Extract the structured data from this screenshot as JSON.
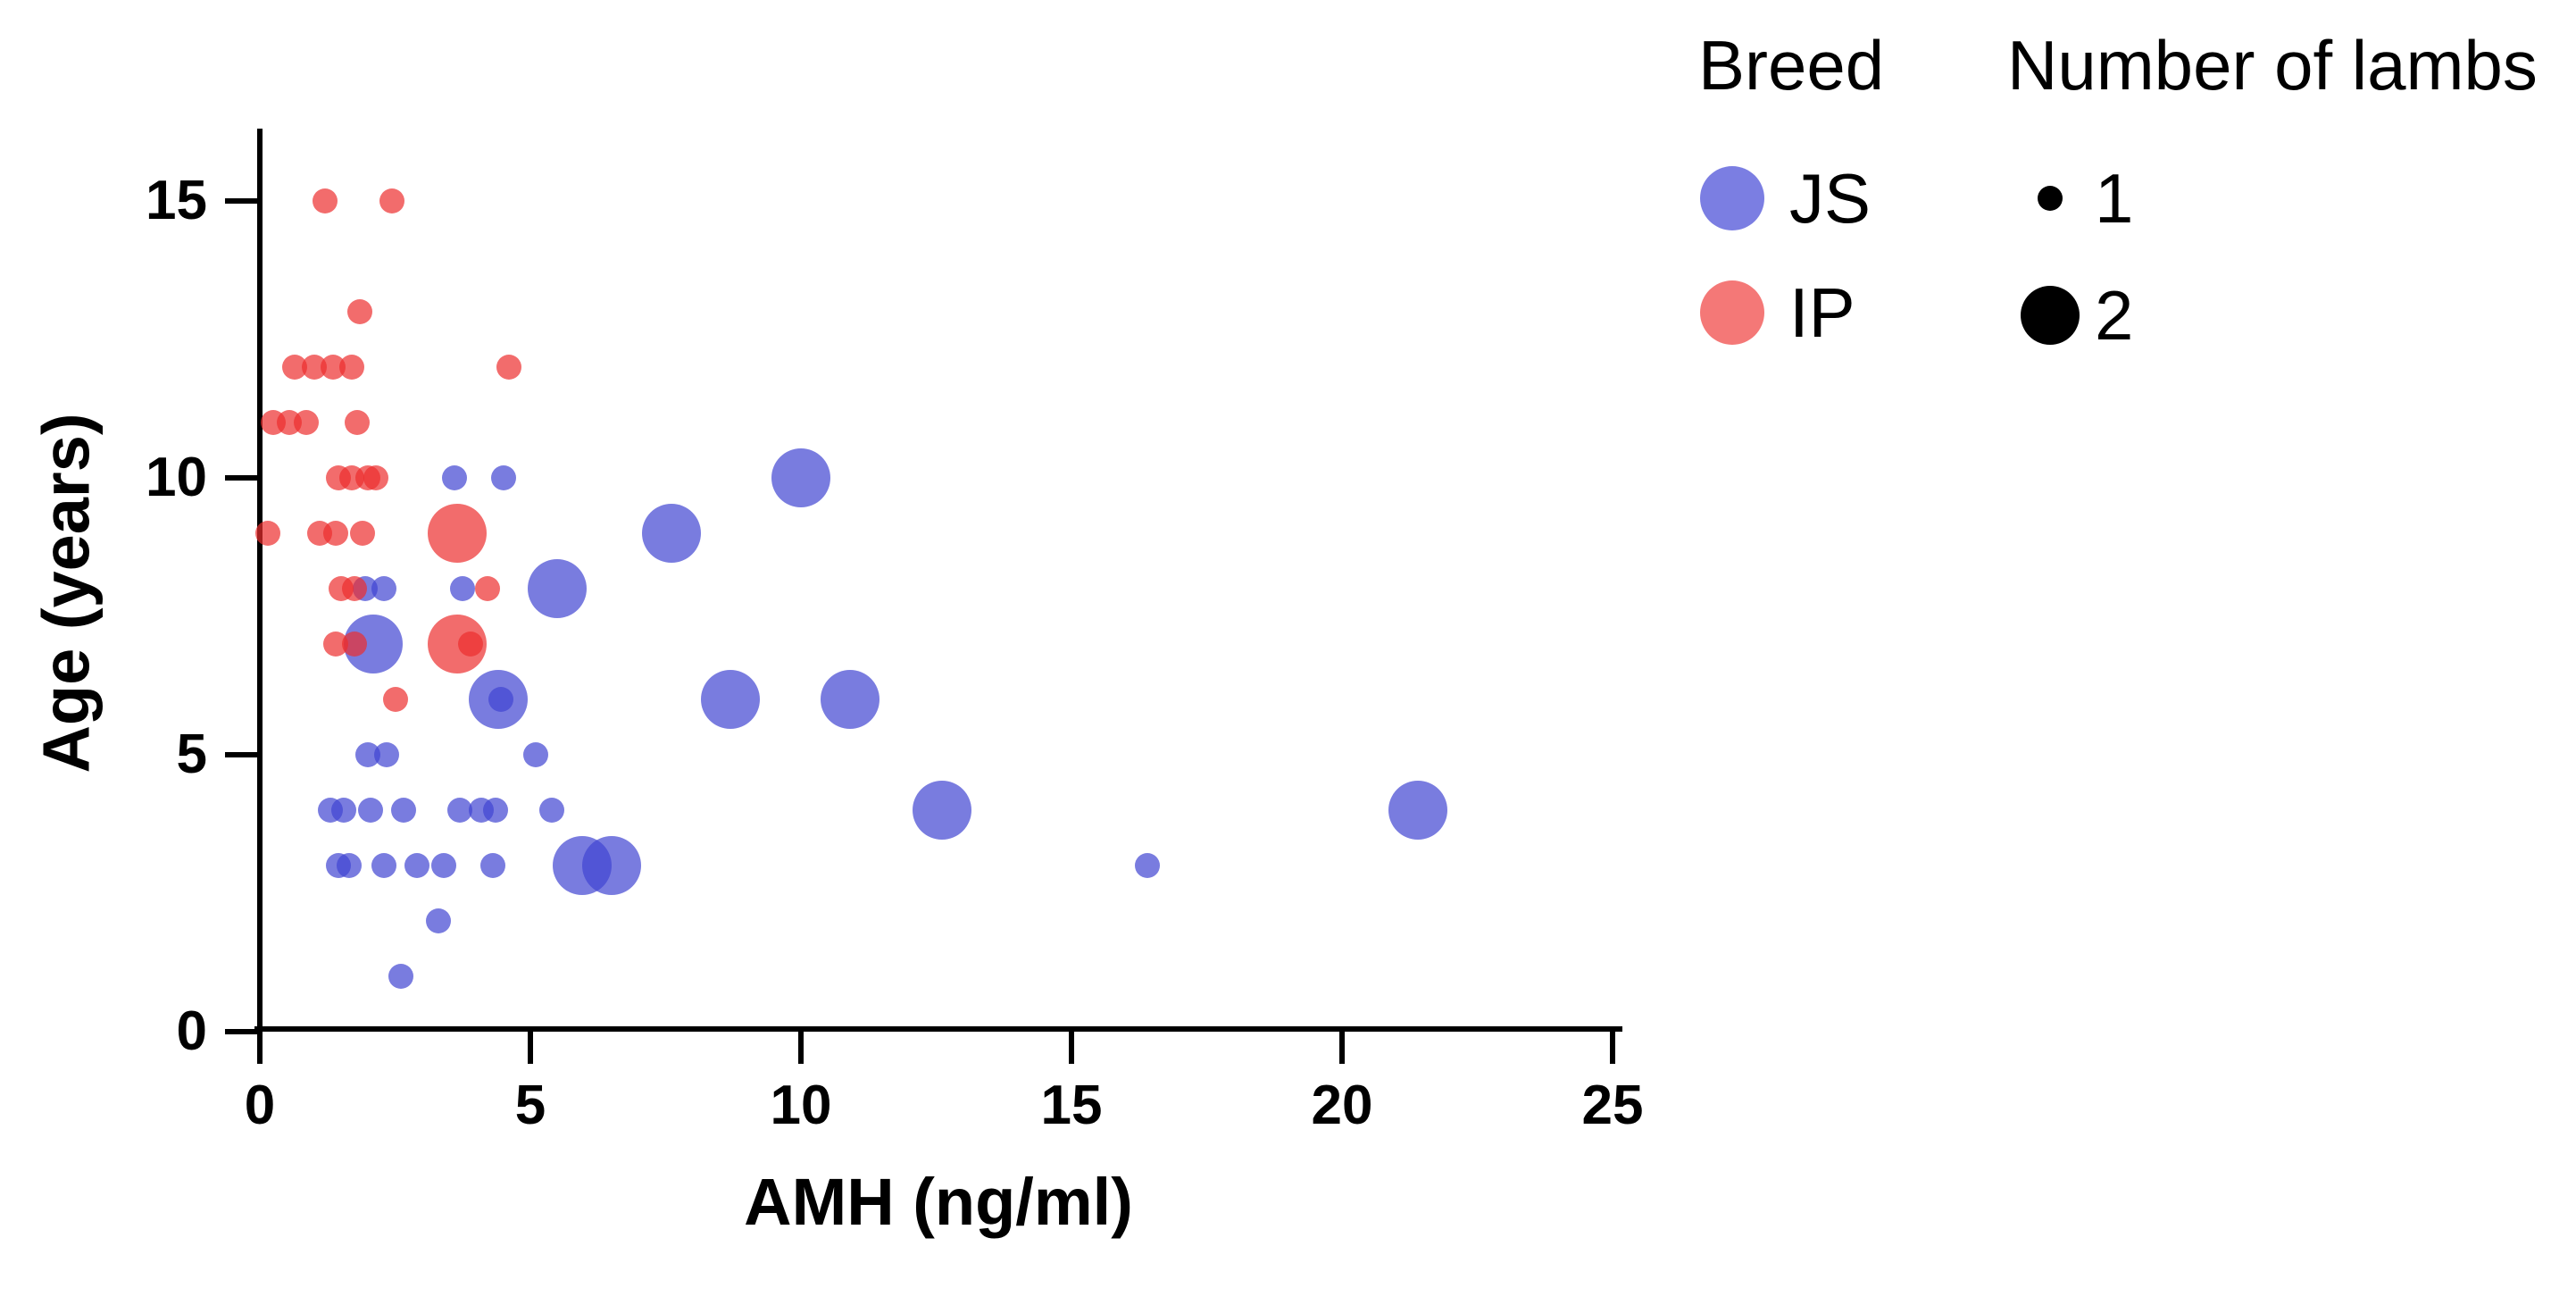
{
  "legend": {
    "breed": {
      "title": "Breed",
      "items": [
        {
          "label": "JS",
          "color": "#7b7ee2"
        },
        {
          "label": "IP",
          "color": "#f47877"
        }
      ]
    },
    "lambs": {
      "title": "Number of lambs",
      "items": [
        {
          "label": "1",
          "size": 1
        },
        {
          "label": "2",
          "size": 2
        }
      ]
    }
  },
  "chart_data": {
    "type": "scatter",
    "title": "",
    "xlabel": "AMH (ng/ml)",
    "ylabel": "Age (years)",
    "xlim": [
      0,
      25
    ],
    "ylim": [
      0,
      16.3
    ],
    "xticks": [
      0,
      5,
      10,
      15,
      20,
      25
    ],
    "yticks": [
      0,
      5,
      10,
      15
    ],
    "grid": false,
    "legend_position": "top-right",
    "bubble_radius_px": {
      "1": 14,
      "2": 33
    },
    "series": [
      {
        "name": "JS",
        "color_rgba": "rgba(64,68,209,0.70)",
        "points": [
          {
            "x": 3.6,
            "y": 10,
            "lambs": 1
          },
          {
            "x": 4.5,
            "y": 10,
            "lambs": 1
          },
          {
            "x": 10.0,
            "y": 10,
            "lambs": 2
          },
          {
            "x": 7.6,
            "y": 9,
            "lambs": 2
          },
          {
            "x": 1.95,
            "y": 8,
            "lambs": 1
          },
          {
            "x": 2.3,
            "y": 8,
            "lambs": 1
          },
          {
            "x": 3.75,
            "y": 8,
            "lambs": 1
          },
          {
            "x": 5.5,
            "y": 8,
            "lambs": 2
          },
          {
            "x": 2.1,
            "y": 7,
            "lambs": 2
          },
          {
            "x": 4.4,
            "y": 6,
            "lambs": 2
          },
          {
            "x": 4.45,
            "y": 6,
            "lambs": 1
          },
          {
            "x": 8.7,
            "y": 6,
            "lambs": 2
          },
          {
            "x": 10.9,
            "y": 6,
            "lambs": 2
          },
          {
            "x": 2.0,
            "y": 5,
            "lambs": 1
          },
          {
            "x": 2.35,
            "y": 5,
            "lambs": 1
          },
          {
            "x": 5.1,
            "y": 5,
            "lambs": 1
          },
          {
            "x": 1.3,
            "y": 4,
            "lambs": 1
          },
          {
            "x": 1.55,
            "y": 4,
            "lambs": 1
          },
          {
            "x": 2.05,
            "y": 4,
            "lambs": 1
          },
          {
            "x": 2.65,
            "y": 4,
            "lambs": 1
          },
          {
            "x": 3.7,
            "y": 4,
            "lambs": 1
          },
          {
            "x": 4.1,
            "y": 4,
            "lambs": 1
          },
          {
            "x": 4.35,
            "y": 4,
            "lambs": 1
          },
          {
            "x": 5.4,
            "y": 4,
            "lambs": 1
          },
          {
            "x": 12.6,
            "y": 4,
            "lambs": 2
          },
          {
            "x": 21.4,
            "y": 4,
            "lambs": 2
          },
          {
            "x": 1.45,
            "y": 3,
            "lambs": 1
          },
          {
            "x": 1.65,
            "y": 3,
            "lambs": 1
          },
          {
            "x": 2.3,
            "y": 3,
            "lambs": 1
          },
          {
            "x": 2.9,
            "y": 3,
            "lambs": 1
          },
          {
            "x": 3.4,
            "y": 3,
            "lambs": 1
          },
          {
            "x": 4.3,
            "y": 3,
            "lambs": 1
          },
          {
            "x": 5.95,
            "y": 3,
            "lambs": 2
          },
          {
            "x": 6.5,
            "y": 3,
            "lambs": 2
          },
          {
            "x": 16.4,
            "y": 3,
            "lambs": 1
          },
          {
            "x": 3.3,
            "y": 2,
            "lambs": 1
          },
          {
            "x": 2.6,
            "y": 1,
            "lambs": 1
          }
        ]
      },
      {
        "name": "IP",
        "color_rgba": "rgba(236,45,45,0.70)",
        "points": [
          {
            "x": 1.2,
            "y": 15,
            "lambs": 1
          },
          {
            "x": 2.45,
            "y": 15,
            "lambs": 1
          },
          {
            "x": 1.85,
            "y": 13,
            "lambs": 1
          },
          {
            "x": 0.65,
            "y": 12,
            "lambs": 1
          },
          {
            "x": 1.0,
            "y": 12,
            "lambs": 1
          },
          {
            "x": 1.35,
            "y": 12,
            "lambs": 1
          },
          {
            "x": 1.7,
            "y": 12,
            "lambs": 1
          },
          {
            "x": 4.6,
            "y": 12,
            "lambs": 1
          },
          {
            "x": 0.25,
            "y": 11,
            "lambs": 1
          },
          {
            "x": 0.55,
            "y": 11,
            "lambs": 1
          },
          {
            "x": 0.85,
            "y": 11,
            "lambs": 1
          },
          {
            "x": 1.8,
            "y": 11,
            "lambs": 1
          },
          {
            "x": 1.45,
            "y": 10,
            "lambs": 1
          },
          {
            "x": 1.7,
            "y": 10,
            "lambs": 1
          },
          {
            "x": 2.0,
            "y": 10,
            "lambs": 1
          },
          {
            "x": 2.15,
            "y": 10,
            "lambs": 1
          },
          {
            "x": 0.15,
            "y": 9,
            "lambs": 1
          },
          {
            "x": 1.1,
            "y": 9,
            "lambs": 1
          },
          {
            "x": 1.4,
            "y": 9,
            "lambs": 1
          },
          {
            "x": 1.9,
            "y": 9,
            "lambs": 1
          },
          {
            "x": 3.65,
            "y": 9,
            "lambs": 2
          },
          {
            "x": 1.5,
            "y": 8,
            "lambs": 1
          },
          {
            "x": 1.75,
            "y": 8,
            "lambs": 1
          },
          {
            "x": 4.2,
            "y": 8,
            "lambs": 1
          },
          {
            "x": 1.4,
            "y": 7,
            "lambs": 1
          },
          {
            "x": 1.75,
            "y": 7,
            "lambs": 1
          },
          {
            "x": 3.65,
            "y": 7,
            "lambs": 2
          },
          {
            "x": 3.9,
            "y": 7,
            "lambs": 1
          },
          {
            "x": 2.5,
            "y": 6,
            "lambs": 1
          }
        ]
      }
    ]
  }
}
